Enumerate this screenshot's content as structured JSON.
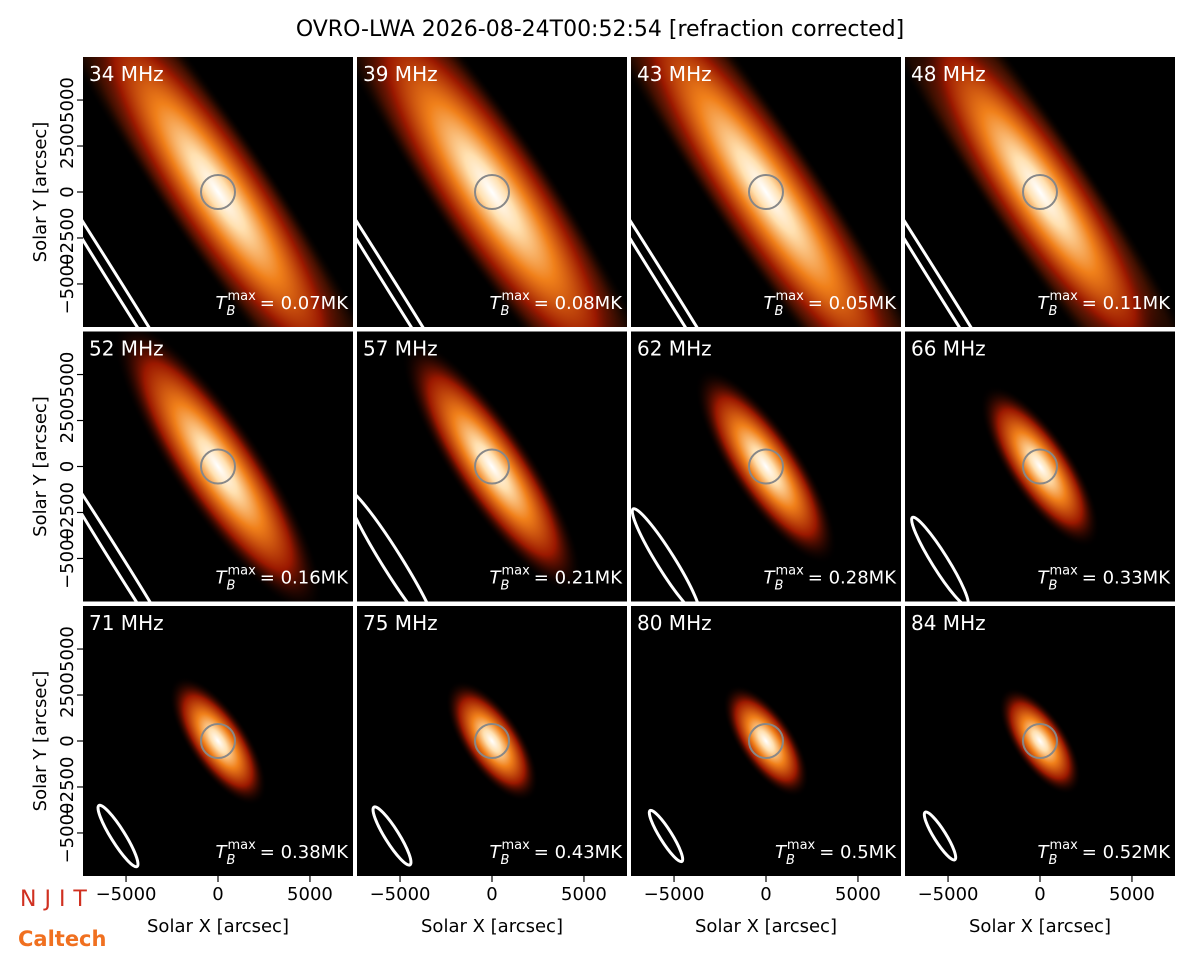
{
  "title": "OVRO-LWA 2026-08-24T00:52:54 [refraction corrected]",
  "tb_symbol": {
    "base": "T",
    "sub": "B",
    "sup": "max"
  },
  "logos": [
    "NJIT",
    "Caltech"
  ],
  "chart_data": [
    {
      "type": "image",
      "title": "34 MHz",
      "annotation": "= 0.07MK",
      "xlim": [
        -7340,
        7340
      ],
      "ylim": [
        -7340,
        7340
      ],
      "ylabel": "Solar Y [arcsec]",
      "yticks": [
        {
          "value": -5000,
          "label": "−5000"
        },
        {
          "value": -2500,
          "label": "−2500"
        },
        0,
        2500,
        5000
      ]
    },
    {
      "type": "image",
      "title": "39 MHz",
      "annotation": "= 0.08MK",
      "xlim": [
        -7340,
        7340
      ],
      "ylim": [
        -7340,
        7340
      ]
    },
    {
      "type": "image",
      "title": "43 MHz",
      "annotation": "= 0.05MK",
      "xlim": [
        -7340,
        7340
      ],
      "ylim": [
        -7340,
        7340
      ]
    },
    {
      "type": "image",
      "title": "48 MHz",
      "annotation": "= 0.11MK",
      "xlim": [
        -7340,
        7340
      ],
      "ylim": [
        -7340,
        7340
      ]
    },
    {
      "type": "image",
      "title": "52 MHz",
      "annotation": "= 0.16MK",
      "xlim": [
        -7340,
        7340
      ],
      "ylim": [
        -7340,
        7340
      ],
      "ylabel": "Solar Y [arcsec]",
      "yticks": [
        {
          "value": -5000,
          "label": "−5000"
        },
        {
          "value": -2500,
          "label": "−2500"
        },
        0,
        2500,
        5000
      ]
    },
    {
      "type": "image",
      "title": "57 MHz",
      "annotation": "= 0.21MK",
      "xlim": [
        -7340,
        7340
      ],
      "ylim": [
        -7340,
        7340
      ]
    },
    {
      "type": "image",
      "title": "62 MHz",
      "annotation": "= 0.28MK",
      "xlim": [
        -7340,
        7340
      ],
      "ylim": [
        -7340,
        7340
      ]
    },
    {
      "type": "image",
      "title": "66 MHz",
      "annotation": "= 0.33MK",
      "xlim": [
        -7340,
        7340
      ],
      "ylim": [
        -7340,
        7340
      ]
    },
    {
      "type": "image",
      "title": "71 MHz",
      "annotation": "= 0.38MK",
      "xlim": [
        -7340,
        7340
      ],
      "ylim": [
        -7340,
        7340
      ],
      "ylabel": "Solar Y [arcsec]",
      "yticks": [
        {
          "value": -5000,
          "label": "−5000"
        },
        {
          "value": -2500,
          "label": "−2500"
        },
        0,
        2500,
        5000
      ],
      "xlabel": "Solar X [arcsec]",
      "xticks": [
        {
          "value": -5000,
          "label": "−5000"
        },
        0,
        5000
      ]
    },
    {
      "type": "image",
      "title": "75 MHz",
      "annotation": "= 0.43MK",
      "xlim": [
        -7340,
        7340
      ],
      "ylim": [
        -7340,
        7340
      ],
      "xlabel": "Solar X [arcsec]",
      "xticks": [
        {
          "value": -5000,
          "label": "−5000"
        },
        0,
        5000
      ]
    },
    {
      "type": "image",
      "title": "80 MHz",
      "annotation": "= 0.5MK",
      "xlim": [
        -7340,
        7340
      ],
      "ylim": [
        -7340,
        7340
      ],
      "xlabel": "Solar X [arcsec]",
      "xticks": [
        {
          "value": -5000,
          "label": "−5000"
        },
        0,
        5000
      ]
    },
    {
      "type": "image",
      "title": "84 MHz",
      "annotation": "= 0.52MK",
      "xlim": [
        -7340,
        7340
      ],
      "ylim": [
        -7340,
        7340
      ],
      "xlabel": "Solar X [arcsec]",
      "xticks": [
        {
          "value": -5000,
          "label": "−5000"
        },
        0,
        5000
      ]
    }
  ]
}
